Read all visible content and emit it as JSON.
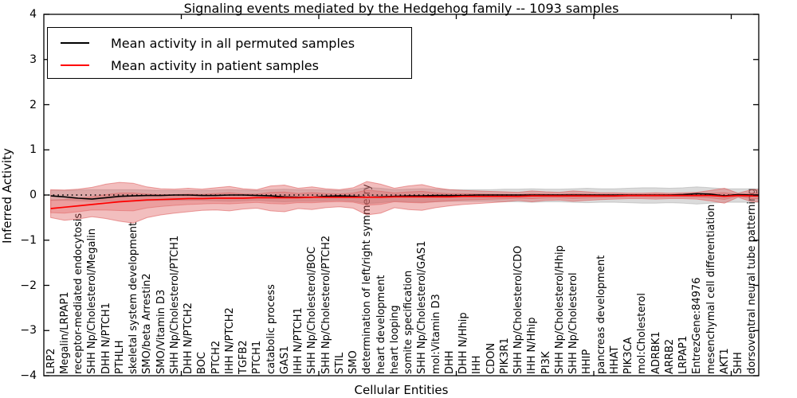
{
  "title": "Signaling events mediated by the Hedgehog family -- 1093 samples",
  "axes": {
    "y_label": "Inferred Activity",
    "x_label": "Cellular Entities",
    "y_ticks": [
      "4",
      "3",
      "2",
      "1",
      "0",
      "−1",
      "−2",
      "−3",
      "−4"
    ],
    "y_tick_values": [
      4,
      3,
      2,
      1,
      0,
      -1,
      -2,
      -3,
      -4
    ],
    "x_major_ticks": [
      10,
      20,
      30,
      40,
      50
    ],
    "ylim": [
      -4,
      4
    ]
  },
  "legend": {
    "items": [
      {
        "label": "Mean activity in all permuted samples",
        "color": "#000000"
      },
      {
        "label": "Mean activity in patient samples",
        "color": "#ff0000"
      }
    ]
  },
  "chart_data": {
    "type": "line",
    "title": "Signaling events mediated by the Hedgehog family -- 1093 samples",
    "xlabel": "Cellular Entities",
    "ylabel": "Inferred Activity",
    "ylim": [
      -4,
      4
    ],
    "grid": false,
    "legend_position": "upper left",
    "baseline": {
      "value": 0,
      "style": "dotted",
      "color": "#000000"
    },
    "categories": [
      "LRP2",
      "Megalin/LRPAP1",
      "receptor-mediated endocytosis",
      "SHH Np/Cholesterol/Megalin",
      "DHH N/PTCH1",
      "PTHLH",
      "skeletal system development",
      "SMO/beta Arrestin2",
      "SMO/Vitamin D3",
      "SHH Np/Cholesterol/PTCH1",
      "DHH N/PTCH2",
      "BOC",
      "PTCH2",
      "IHH N/PTCH2",
      "TGFB2",
      "PTCH1",
      "catabolic process",
      "GAS1",
      "IHH N/PTCH1",
      "SHH Np/Cholesterol/BOC",
      "SHH Np/Cholesterol/PTCH2",
      "STIL",
      "SMO",
      "determination of left/right symmetry",
      "heart development",
      "heart looping",
      "somite specification",
      "SHH Np/Cholesterol/GAS1",
      "mol:Vitamin D3",
      "DHH",
      "DHH N/Hhip",
      "IHH",
      "CDON",
      "PIK3R1",
      "SHH Np/Cholesterol/CDO",
      "IHH N/Hhip",
      "PI3K",
      "SHH Np/Cholesterol/Hhip",
      "SHH Np/Cholesterol",
      "HHIP",
      "pancreas development",
      "HHAT",
      "PIK3CA",
      "mol:Cholesterol",
      "ADRBK1",
      "ARRB2",
      "LRPAP1",
      "EntrezGene:84976",
      "mesenchymal cell differentiation",
      "AKT1",
      "SHH",
      "dorsoventral neural tube patterning"
    ],
    "series": [
      {
        "name": "Mean activity in all permuted samples",
        "color": "#000000",
        "style": "solid",
        "values": [
          -0.02,
          -0.04,
          -0.07,
          -0.09,
          -0.06,
          -0.03,
          -0.02,
          -0.01,
          -0.01,
          0.0,
          0.0,
          -0.01,
          -0.01,
          0.0,
          0.0,
          -0.01,
          -0.02,
          -0.04,
          -0.05,
          -0.05,
          -0.03,
          -0.02,
          -0.03,
          -0.05,
          -0.04,
          -0.03,
          -0.02,
          -0.02,
          -0.01,
          -0.01,
          -0.01,
          0.0,
          0.0,
          0.0,
          0.0,
          0.0,
          0.0,
          0.0,
          0.0,
          0.0,
          0.0,
          0.0,
          0.0,
          0.0,
          0.0,
          0.0,
          0.01,
          0.03,
          0.02,
          -0.02,
          0.01,
          0.0
        ]
      },
      {
        "name": "Mean activity in patient samples",
        "color": "#ff0000",
        "style": "solid",
        "values": [
          -0.3,
          -0.27,
          -0.24,
          -0.21,
          -0.18,
          -0.15,
          -0.13,
          -0.11,
          -0.1,
          -0.09,
          -0.08,
          -0.08,
          -0.07,
          -0.07,
          -0.07,
          -0.06,
          -0.06,
          -0.06,
          -0.06,
          -0.05,
          -0.05,
          -0.05,
          -0.05,
          -0.05,
          -0.05,
          -0.04,
          -0.04,
          -0.04,
          -0.04,
          -0.04,
          -0.03,
          -0.03,
          -0.03,
          -0.03,
          -0.03,
          -0.02,
          -0.02,
          -0.02,
          -0.02,
          -0.02,
          -0.02,
          -0.02,
          -0.01,
          -0.01,
          -0.01,
          -0.01,
          -0.01,
          -0.01,
          -0.01,
          -0.03,
          -0.01,
          -0.02
        ]
      }
    ],
    "bands": [
      {
        "name": "permuted samples range",
        "color": "#999999",
        "fill_opacity": 0.35,
        "edge_opacity": 0.4,
        "upper": [
          0.1,
          0.1,
          0.11,
          0.12,
          0.12,
          0.12,
          0.12,
          0.11,
          0.1,
          0.1,
          0.1,
          0.1,
          0.11,
          0.12,
          0.11,
          0.1,
          0.12,
          0.13,
          0.12,
          0.12,
          0.11,
          0.1,
          0.12,
          0.17,
          0.15,
          0.12,
          0.13,
          0.14,
          0.13,
          0.12,
          0.12,
          0.12,
          0.12,
          0.13,
          0.13,
          0.14,
          0.13,
          0.13,
          0.14,
          0.15,
          0.14,
          0.14,
          0.15,
          0.16,
          0.16,
          0.15,
          0.16,
          0.18,
          0.16,
          0.14,
          0.14,
          0.14
        ],
        "lower": [
          -0.12,
          -0.12,
          -0.13,
          -0.14,
          -0.14,
          -0.14,
          -0.14,
          -0.13,
          -0.12,
          -0.12,
          -0.12,
          -0.12,
          -0.13,
          -0.14,
          -0.13,
          -0.12,
          -0.14,
          -0.15,
          -0.14,
          -0.14,
          -0.13,
          -0.12,
          -0.14,
          -0.19,
          -0.17,
          -0.14,
          -0.15,
          -0.16,
          -0.15,
          -0.14,
          -0.14,
          -0.14,
          -0.14,
          -0.15,
          -0.15,
          -0.16,
          -0.15,
          -0.15,
          -0.16,
          -0.17,
          -0.16,
          -0.16,
          -0.17,
          -0.18,
          -0.18,
          -0.17,
          -0.18,
          -0.2,
          -0.18,
          -0.16,
          -0.16,
          -0.16
        ]
      },
      {
        "name": "patient samples range (outer)",
        "color": "#dd5555",
        "fill_opacity": 0.38,
        "edge_opacity": 0.55,
        "upper": [
          0.12,
          0.11,
          0.13,
          0.17,
          0.24,
          0.28,
          0.26,
          0.18,
          0.14,
          0.13,
          0.15,
          0.13,
          0.16,
          0.19,
          0.14,
          0.12,
          0.2,
          0.22,
          0.15,
          0.18,
          0.14,
          0.12,
          0.16,
          0.3,
          0.24,
          0.15,
          0.2,
          0.23,
          0.16,
          0.12,
          0.1,
          0.09,
          0.08,
          0.07,
          0.06,
          0.09,
          0.07,
          0.06,
          0.09,
          0.07,
          0.05,
          0.05,
          0.04,
          0.04,
          0.05,
          0.04,
          0.05,
          0.06,
          0.1,
          0.15,
          0.04,
          0.12
        ],
        "lower": [
          -0.5,
          -0.56,
          -0.53,
          -0.48,
          -0.52,
          -0.58,
          -0.62,
          -0.5,
          -0.44,
          -0.4,
          -0.37,
          -0.34,
          -0.33,
          -0.35,
          -0.31,
          -0.29,
          -0.35,
          -0.37,
          -0.3,
          -0.32,
          -0.28,
          -0.26,
          -0.29,
          -0.44,
          -0.4,
          -0.28,
          -0.32,
          -0.34,
          -0.28,
          -0.24,
          -0.21,
          -0.19,
          -0.17,
          -0.15,
          -0.12,
          -0.15,
          -0.12,
          -0.11,
          -0.14,
          -0.12,
          -0.1,
          -0.09,
          -0.08,
          -0.08,
          -0.09,
          -0.08,
          -0.08,
          -0.09,
          -0.13,
          -0.18,
          -0.05,
          -0.15
        ]
      },
      {
        "name": "patient samples range (inner)",
        "color": "#dd5555",
        "fill_opacity": 0.3,
        "edge_opacity": 0.45,
        "inner_fraction": 0.45,
        "around_series": 1,
        "derived_from_band": 1
      }
    ]
  }
}
